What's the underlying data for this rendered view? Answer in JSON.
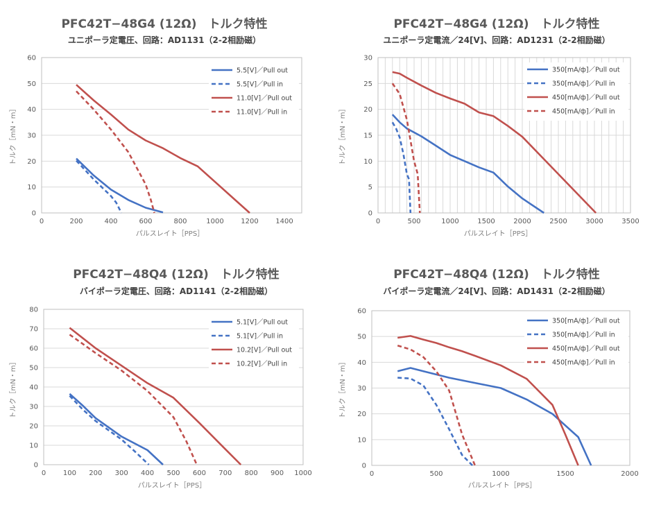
{
  "chart_data": [
    {
      "type": "line",
      "title": "PFC42T−48G4 (12Ω)　トルク特性",
      "subtitle": "ユニポーラ定電圧、回路：AD1131（2-2相励磁）",
      "xlabel": "パルスレイト［PPS］",
      "ylabel": "トルク［mN・m］",
      "xlim": [
        0,
        1500
      ],
      "xticks": [
        0,
        200,
        400,
        600,
        800,
        1000,
        1200,
        1400
      ],
      "ylim": [
        0,
        60
      ],
      "yticks": [
        0,
        10,
        20,
        30,
        40,
        50,
        60
      ],
      "grid": "horizontal",
      "legend": "top-right",
      "series": [
        {
          "name": "5.5[V]／Pull out",
          "color": "#4472c4",
          "dash": false,
          "x": [
            200,
            300,
            400,
            500,
            600,
            700
          ],
          "y": [
            21,
            14.5,
            9,
            5,
            2,
            0.2
          ]
        },
        {
          "name": "5.5[V]／Pull in",
          "color": "#4472c4",
          "dash": true,
          "x": [
            200,
            300,
            400,
            430,
            460
          ],
          "y": [
            20.2,
            13,
            6.5,
            4,
            0
          ]
        },
        {
          "name": "11.0[V]／Pull out",
          "color": "#c0504d",
          "dash": false,
          "x": [
            200,
            300,
            400,
            500,
            600,
            700,
            800,
            900,
            1000,
            1100,
            1200
          ],
          "y": [
            49.5,
            43.5,
            38,
            32.2,
            28,
            25,
            21.2,
            18,
            12,
            6,
            0
          ]
        },
        {
          "name": "11.0[V]／Pull in",
          "color": "#c0504d",
          "dash": true,
          "x": [
            200,
            300,
            400,
            500,
            600,
            630,
            650
          ],
          "y": [
            47,
            40,
            32.2,
            23.5,
            11,
            5,
            0
          ]
        }
      ]
    },
    {
      "type": "line",
      "title": "PFC42T−48G4 (12Ω)　トルク特性",
      "subtitle": "ユニポーラ定電流／24[V]、回路：AD1231（2-2相励磁）",
      "xlabel": "パルスレイト［PPS］",
      "ylabel": "トルク［mN・m］",
      "xlim": [
        0,
        3500
      ],
      "xticks": [
        0,
        500,
        1000,
        1500,
        2000,
        2500,
        3000,
        3500
      ],
      "ylim": [
        0,
        30
      ],
      "yticks": [
        0,
        5,
        10,
        15,
        20,
        25,
        30
      ],
      "grid": "both",
      "legend": "top-right",
      "series": [
        {
          "name": "350[mA/ф]／Pull out",
          "color": "#4472c4",
          "dash": false,
          "x": [
            200,
            300,
            400,
            600,
            800,
            1000,
            1200,
            1400,
            1600,
            1800,
            2000,
            2300
          ],
          "y": [
            19,
            17.5,
            16.3,
            14.8,
            13,
            11.2,
            10,
            8.8,
            7.8,
            5.1,
            2.8,
            0
          ]
        },
        {
          "name": "350[mA/ф]／Pull in",
          "color": "#4472c4",
          "dash": true,
          "x": [
            200,
            250,
            300,
            350,
            400,
            430,
            450
          ],
          "y": [
            17.5,
            16.3,
            14.6,
            11.5,
            7.5,
            6.5,
            0
          ]
        },
        {
          "name": "450[mA/ф]／Pull out",
          "color": "#c0504d",
          "dash": false,
          "x": [
            200,
            300,
            400,
            600,
            800,
            1000,
            1200,
            1400,
            1600,
            1800,
            2000,
            2500,
            3020
          ],
          "y": [
            27.2,
            26.9,
            26.1,
            24.6,
            23.2,
            22.1,
            21.1,
            19.4,
            18.7,
            16.8,
            14.7,
            7.5,
            0
          ]
        },
        {
          "name": "450[mA/ф]／Pull in",
          "color": "#c0504d",
          "dash": true,
          "x": [
            200,
            300,
            400,
            500,
            550,
            580
          ],
          "y": [
            25,
            23,
            18,
            10,
            7.5,
            0
          ]
        }
      ]
    },
    {
      "type": "line",
      "title": "PFC42T−48Q4 (12Ω)　トルク特性",
      "subtitle": "バイポーラ定電圧、回路：AD1141（2-2相励磁）",
      "xlabel": "パルスレイト［PPS］",
      "ylabel": "トルク［mN・m］",
      "xlim": [
        0,
        1000
      ],
      "xticks": [
        0,
        100,
        200,
        300,
        400,
        500,
        600,
        700,
        800,
        900,
        1000
      ],
      "ylim": [
        0,
        80
      ],
      "yticks": [
        0,
        10,
        20,
        30,
        40,
        50,
        60,
        70,
        80
      ],
      "grid": "horizontal",
      "legend": "top-right",
      "series": [
        {
          "name": "5.1[V]／Pull out",
          "color": "#4472c4",
          "dash": false,
          "x": [
            100,
            150,
            200,
            300,
            400,
            460
          ],
          "y": [
            36.5,
            30.5,
            24,
            14.5,
            7.5,
            0
          ]
        },
        {
          "name": "5.1[V]／Pull in",
          "color": "#4472c4",
          "dash": true,
          "x": [
            100,
            150,
            200,
            300,
            350,
            405
          ],
          "y": [
            35.5,
            28.5,
            22.5,
            13,
            7,
            0
          ]
        },
        {
          "name": "10.2[V]／Pull out",
          "color": "#c0504d",
          "dash": false,
          "x": [
            100,
            200,
            300,
            400,
            500,
            600,
            700,
            760
          ],
          "y": [
            70.5,
            60,
            51,
            42,
            34.5,
            21.5,
            8,
            0
          ]
        },
        {
          "name": "10.2[V]／Pull in",
          "color": "#c0504d",
          "dash": true,
          "x": [
            100,
            200,
            300,
            400,
            500,
            550,
            590
          ],
          "y": [
            67,
            57.5,
            48.5,
            38,
            24.5,
            12,
            0
          ]
        }
      ]
    },
    {
      "type": "line",
      "title": "PFC42T−48Q4 (12Ω)　トルク特性",
      "subtitle": "バイポーラ定電流／24[V]、回路：AD1431（2-2相励磁）",
      "xlabel": "パルスレイト［PPS］",
      "ylabel": "トルク［mN・m］",
      "xlim": [
        0,
        2000
      ],
      "xticks": [
        0,
        500,
        1000,
        1500,
        2000
      ],
      "ylim": [
        0,
        60
      ],
      "yticks": [
        0,
        10,
        20,
        30,
        40,
        50,
        60
      ],
      "grid": "horizontal",
      "legend": "top-right",
      "series": [
        {
          "name": "350[mA/ф]／Pull out",
          "color": "#4472c4",
          "dash": false,
          "x": [
            200,
            300,
            400,
            600,
            700,
            800,
            1000,
            1200,
            1400,
            1600,
            1700
          ],
          "y": [
            36.5,
            37.8,
            36.5,
            34,
            33,
            32,
            30,
            25.6,
            20,
            11,
            0
          ]
        },
        {
          "name": "350[mA/ф]／Pull in",
          "color": "#4472c4",
          "dash": true,
          "x": [
            200,
            300,
            400,
            500,
            600,
            700,
            780
          ],
          "y": [
            34,
            33.7,
            31,
            23.5,
            14,
            4,
            0
          ]
        },
        {
          "name": "450[mA/ф]／Pull out",
          "color": "#c0504d",
          "dash": false,
          "x": [
            200,
            300,
            400,
            500,
            600,
            700,
            800,
            1000,
            1200,
            1400,
            1500,
            1600
          ],
          "y": [
            49.5,
            50.2,
            48.8,
            47.5,
            45.8,
            44.3,
            42.5,
            38.8,
            33.6,
            23.5,
            12,
            0
          ]
        },
        {
          "name": "450[mA/ф]／Pull in",
          "color": "#c0504d",
          "dash": true,
          "x": [
            200,
            300,
            400,
            500,
            600,
            700,
            800
          ],
          "y": [
            46.5,
            45,
            42,
            36.5,
            29,
            12,
            0
          ]
        }
      ]
    }
  ]
}
